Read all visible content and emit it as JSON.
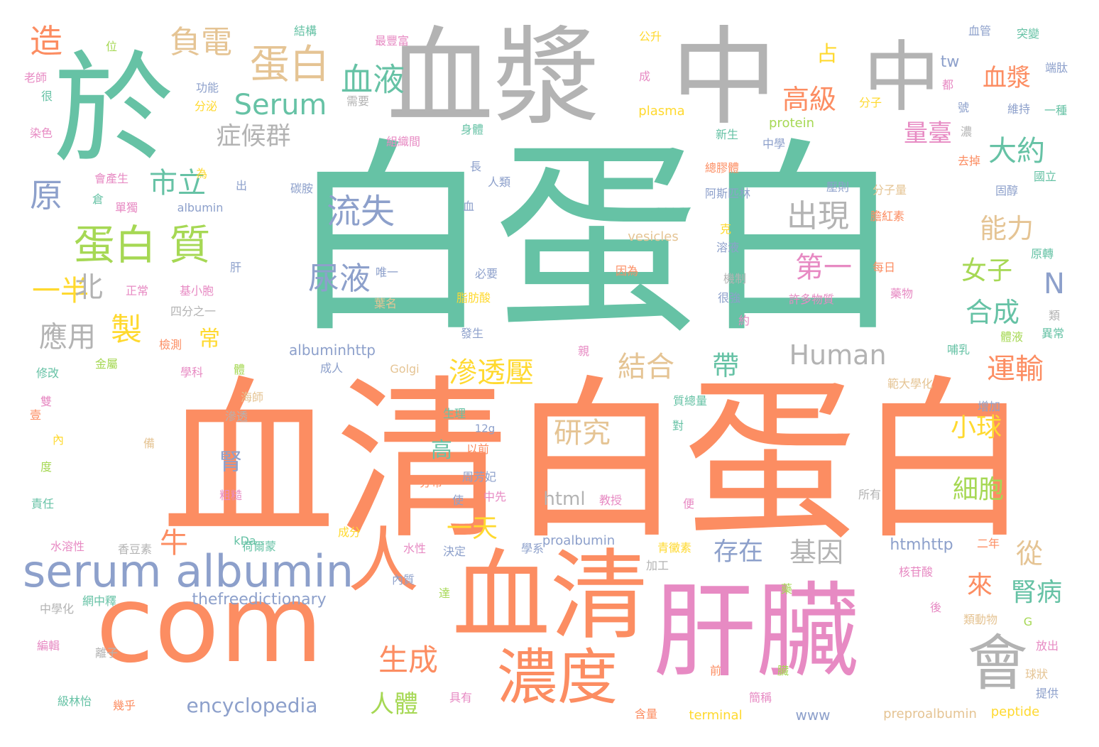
{
  "palette": {
    "teal": "#66c2a5",
    "orange": "#fc8d62",
    "blue": "#8da0cb",
    "pink": "#e78ac3",
    "green": "#a6d854",
    "yellow": "#ffd92f",
    "tan": "#e5c494",
    "gray": "#b3b3b3"
  },
  "words": [
    {
      "text": "白蛋白",
      "color": "teal"
    },
    {
      "text": "血清白蛋白",
      "color": "orange"
    },
    {
      "text": "於",
      "color": "teal"
    },
    {
      "text": "血漿",
      "color": "gray"
    },
    {
      "text": "中",
      "color": "gray"
    },
    {
      "text": "中",
      "color": "gray"
    },
    {
      "text": "com",
      "color": "orange"
    },
    {
      "text": "血清",
      "color": "orange"
    },
    {
      "text": "肝臟",
      "color": "pink"
    },
    {
      "text": "人",
      "color": "orange"
    },
    {
      "text": "濃度",
      "color": "orange"
    },
    {
      "text": "會",
      "color": "gray"
    },
    {
      "text": "serum albumin",
      "color": "blue"
    },
    {
      "text": "蛋白",
      "color": "tan"
    },
    {
      "text": "蛋白 質",
      "color": "green"
    },
    {
      "text": "血液",
      "color": "teal"
    },
    {
      "text": "Serum",
      "color": "teal"
    },
    {
      "text": "負電",
      "color": "tan"
    },
    {
      "text": "造",
      "color": "orange"
    },
    {
      "text": "原",
      "color": "blue"
    },
    {
      "text": "一半",
      "color": "yellow"
    },
    {
      "text": "北",
      "color": "gray"
    },
    {
      "text": "應用",
      "color": "gray"
    },
    {
      "text": "市立",
      "color": "teal"
    },
    {
      "text": "症候群",
      "color": "gray"
    },
    {
      "text": "流失",
      "color": "blue"
    },
    {
      "text": "尿液",
      "color": "blue"
    },
    {
      "text": "製",
      "color": "yellow"
    },
    {
      "text": "常",
      "color": "yellow"
    },
    {
      "text": "牛",
      "color": "orange"
    },
    {
      "text": "腎",
      "color": "blue"
    },
    {
      "text": "高",
      "color": "teal"
    },
    {
      "text": "滲透壓",
      "color": "yellow"
    },
    {
      "text": "結合",
      "color": "tan"
    },
    {
      "text": "帶",
      "color": "teal"
    },
    {
      "text": "Human",
      "color": "gray"
    },
    {
      "text": "研究",
      "color": "tan"
    },
    {
      "text": "一天",
      "color": "yellow"
    },
    {
      "text": "存在",
      "color": "blue"
    },
    {
      "text": "基因",
      "color": "gray"
    },
    {
      "text": "生成",
      "color": "orange"
    },
    {
      "text": "人體",
      "color": "green"
    },
    {
      "text": "encyclopedia",
      "color": "blue"
    },
    {
      "text": "出現",
      "color": "gray"
    },
    {
      "text": "第一",
      "color": "pink"
    },
    {
      "text": "高級",
      "color": "orange"
    },
    {
      "text": "量臺",
      "color": "pink"
    },
    {
      "text": "占",
      "color": "yellow"
    },
    {
      "text": "血漿",
      "color": "orange"
    },
    {
      "text": "大約",
      "color": "teal"
    },
    {
      "text": "能力",
      "color": "tan"
    },
    {
      "text": "女子",
      "color": "green"
    },
    {
      "text": "合成",
      "color": "teal"
    },
    {
      "text": "N",
      "color": "blue"
    },
    {
      "text": "運輸",
      "color": "orange"
    },
    {
      "text": "小球",
      "color": "yellow"
    },
    {
      "text": "細胞",
      "color": "green"
    },
    {
      "text": "從",
      "color": "tan"
    },
    {
      "text": "來",
      "color": "orange"
    },
    {
      "text": "腎病",
      "color": "teal"
    },
    {
      "text": "html",
      "color": "gray"
    },
    {
      "text": "htmhttp",
      "color": "blue"
    },
    {
      "text": "thefreedictionary",
      "color": "blue"
    },
    {
      "text": "albuminhttp",
      "color": "blue"
    },
    {
      "text": "tw",
      "color": "blue"
    },
    {
      "text": "www",
      "color": "blue"
    },
    {
      "text": "preproalbumin",
      "color": "tan"
    },
    {
      "text": "peptide",
      "color": "yellow"
    },
    {
      "text": "terminal",
      "color": "yellow"
    },
    {
      "text": "proalbumin",
      "color": "blue"
    },
    {
      "text": "protein",
      "color": "green"
    },
    {
      "text": "plasma",
      "color": "yellow"
    },
    {
      "text": "vesicles",
      "color": "tan"
    },
    {
      "text": "albumin",
      "color": "blue"
    },
    {
      "text": "Golgi",
      "color": "tan"
    },
    {
      "text": "kDa",
      "color": "teal"
    },
    {
      "text": "12g",
      "color": "blue"
    },
    {
      "text": "G",
      "color": "green"
    },
    {
      "text": "位",
      "color": "green"
    },
    {
      "text": "結構",
      "color": "teal"
    },
    {
      "text": "最豐富",
      "color": "pink"
    },
    {
      "text": "公升",
      "color": "yellow"
    },
    {
      "text": "血管",
      "color": "blue"
    },
    {
      "text": "突變",
      "color": "teal"
    },
    {
      "text": "端肽",
      "color": "blue"
    },
    {
      "text": "老師",
      "color": "pink"
    },
    {
      "text": "很",
      "color": "teal"
    },
    {
      "text": "功能",
      "color": "blue"
    },
    {
      "text": "分泌",
      "color": "yellow"
    },
    {
      "text": "需要",
      "color": "gray"
    },
    {
      "text": "成",
      "color": "pink"
    },
    {
      "text": "分子",
      "color": "yellow"
    },
    {
      "text": "都",
      "color": "pink"
    },
    {
      "text": "號",
      "color": "blue"
    },
    {
      "text": "維持",
      "color": "blue"
    },
    {
      "text": "一種",
      "color": "teal"
    },
    {
      "text": "染色",
      "color": "pink"
    },
    {
      "text": "身體",
      "color": "teal"
    },
    {
      "text": "組織間",
      "color": "pink"
    },
    {
      "text": "新生",
      "color": "teal"
    },
    {
      "text": "中學",
      "color": "blue"
    },
    {
      "text": "濃",
      "color": "gray"
    },
    {
      "text": "去掉",
      "color": "orange"
    },
    {
      "text": "會產生",
      "color": "pink"
    },
    {
      "text": "為",
      "color": "yellow"
    },
    {
      "text": "出",
      "color": "blue"
    },
    {
      "text": "碳胺",
      "color": "blue"
    },
    {
      "text": "長",
      "color": "blue"
    },
    {
      "text": "總膠體",
      "color": "orange"
    },
    {
      "text": "國立",
      "color": "teal"
    },
    {
      "text": "倉",
      "color": "teal"
    },
    {
      "text": "人類",
      "color": "blue"
    },
    {
      "text": "壓則",
      "color": "blue"
    },
    {
      "text": "分子量",
      "color": "tan"
    },
    {
      "text": "固醇",
      "color": "blue"
    },
    {
      "text": "單獨",
      "color": "pink"
    },
    {
      "text": "血",
      "color": "blue"
    },
    {
      "text": "阿斯匹林",
      "color": "blue"
    },
    {
      "text": "膽紅素",
      "color": "orange"
    },
    {
      "text": "克",
      "color": "yellow"
    },
    {
      "text": "溶液",
      "color": "blue"
    },
    {
      "text": "原轉",
      "color": "teal"
    },
    {
      "text": "肝",
      "color": "blue"
    },
    {
      "text": "唯一",
      "color": "blue"
    },
    {
      "text": "必要",
      "color": "blue"
    },
    {
      "text": "因為",
      "color": "orange"
    },
    {
      "text": "機制",
      "color": "gray"
    },
    {
      "text": "每日",
      "color": "orange"
    },
    {
      "text": "正常",
      "color": "pink"
    },
    {
      "text": "基小胞",
      "color": "pink"
    },
    {
      "text": "葉名",
      "color": "tan"
    },
    {
      "text": "脂肪酸",
      "color": "yellow"
    },
    {
      "text": "很強",
      "color": "blue"
    },
    {
      "text": "許多物質",
      "color": "pink"
    },
    {
      "text": "藥物",
      "color": "pink"
    },
    {
      "text": "四分之一",
      "color": "gray"
    },
    {
      "text": "類",
      "color": "gray"
    },
    {
      "text": "約",
      "color": "pink"
    },
    {
      "text": "發生",
      "color": "blue"
    },
    {
      "text": "體液",
      "color": "green"
    },
    {
      "text": "異常",
      "color": "teal"
    },
    {
      "text": "檢測",
      "color": "orange"
    },
    {
      "text": "親",
      "color": "pink"
    },
    {
      "text": "哺乳",
      "color": "teal"
    },
    {
      "text": "金屬",
      "color": "green"
    },
    {
      "text": "修改",
      "color": "teal"
    },
    {
      "text": "學科",
      "color": "pink"
    },
    {
      "text": "體",
      "color": "green"
    },
    {
      "text": "成人",
      "color": "blue"
    },
    {
      "text": "範大學化",
      "color": "tan"
    },
    {
      "text": "海師",
      "color": "tan"
    },
    {
      "text": "雙",
      "color": "pink"
    },
    {
      "text": "壹",
      "color": "orange"
    },
    {
      "text": "滲透",
      "color": "gray"
    },
    {
      "text": "質總量",
      "color": "teal"
    },
    {
      "text": "增加",
      "color": "blue"
    },
    {
      "text": "生理",
      "color": "teal"
    },
    {
      "text": "對",
      "color": "teal"
    },
    {
      "text": "內",
      "color": "yellow"
    },
    {
      "text": "備",
      "color": "tan"
    },
    {
      "text": "以前",
      "color": "orange"
    },
    {
      "text": "度",
      "color": "green"
    },
    {
      "text": "周芳妃",
      "color": "blue"
    },
    {
      "text": "分布",
      "color": "orange"
    },
    {
      "text": "粗糙",
      "color": "pink"
    },
    {
      "text": "中先",
      "color": "pink"
    },
    {
      "text": "所有",
      "color": "gray"
    },
    {
      "text": "責任",
      "color": "teal"
    },
    {
      "text": "使",
      "color": "blue"
    },
    {
      "text": "教授",
      "color": "pink"
    },
    {
      "text": "便",
      "color": "pink"
    },
    {
      "text": "成分",
      "color": "yellow"
    },
    {
      "text": "水溶性",
      "color": "pink"
    },
    {
      "text": "香豆素",
      "color": "gray"
    },
    {
      "text": "荷爾蒙",
      "color": "teal"
    },
    {
      "text": "水性",
      "color": "pink"
    },
    {
      "text": "決定",
      "color": "blue"
    },
    {
      "text": "學系",
      "color": "blue"
    },
    {
      "text": "青黴素",
      "color": "yellow"
    },
    {
      "text": "二年",
      "color": "orange"
    },
    {
      "text": "加工",
      "color": "gray"
    },
    {
      "text": "核苷酸",
      "color": "pink"
    },
    {
      "text": "內質",
      "color": "blue"
    },
    {
      "text": "達",
      "color": "green"
    },
    {
      "text": "藥",
      "color": "green"
    },
    {
      "text": "網中釋",
      "color": "teal"
    },
    {
      "text": "中學化",
      "color": "gray"
    },
    {
      "text": "後",
      "color": "pink"
    },
    {
      "text": "類動物",
      "color": "tan"
    },
    {
      "text": "編輯",
      "color": "pink"
    },
    {
      "text": "離子",
      "color": "gray"
    },
    {
      "text": "放出",
      "color": "pink"
    },
    {
      "text": "前",
      "color": "orange"
    },
    {
      "text": "臟",
      "color": "green"
    },
    {
      "text": "球狀",
      "color": "tan"
    },
    {
      "text": "級林怡",
      "color": "teal"
    },
    {
      "text": "幾乎",
      "color": "orange"
    },
    {
      "text": "具有",
      "color": "pink"
    },
    {
      "text": "簡稱",
      "color": "pink"
    },
    {
      "text": "提供",
      "color": "blue"
    },
    {
      "text": "含量",
      "color": "orange"
    }
  ]
}
